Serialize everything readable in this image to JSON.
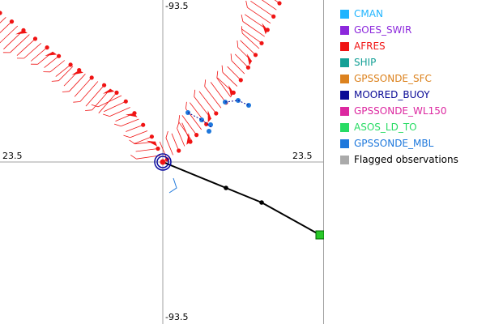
{
  "axes": {
    "top": "-93.5",
    "bottom": "-93.5",
    "left": "23.5",
    "right": "23.5"
  },
  "legend": [
    {
      "label": "CMAN",
      "color": "#1eb4ff"
    },
    {
      "label": "GOES_SWIR",
      "color": "#8c28dc"
    },
    {
      "label": "AFRES",
      "color": "#f01414"
    },
    {
      "label": "SHIP",
      "color": "#14a096"
    },
    {
      "label": "GPSSONDE_SFC",
      "color": "#dc821e"
    },
    {
      "label": "MOORED_BUOY",
      "color": "#0a0a96"
    },
    {
      "label": "GPSSONDE_WL150",
      "color": "#dc28a0"
    },
    {
      "label": "ASOS_LD_TO",
      "color": "#28dc64"
    },
    {
      "label": "GPSSONDE_MBL",
      "color": "#1e78dc"
    },
    {
      "label": "Flagged observations",
      "color": "#aaaaaa"
    }
  ],
  "colors": {
    "axis": "#a0a0a0",
    "observation": "#f01414",
    "track": "#000000",
    "center_ring": "#0a0aa0",
    "end_marker": "#28c828",
    "sonde": "#1e78dc"
  },
  "icons": {
    "center": "storm-center-rings-icon",
    "end": "track-end-square-icon"
  }
}
